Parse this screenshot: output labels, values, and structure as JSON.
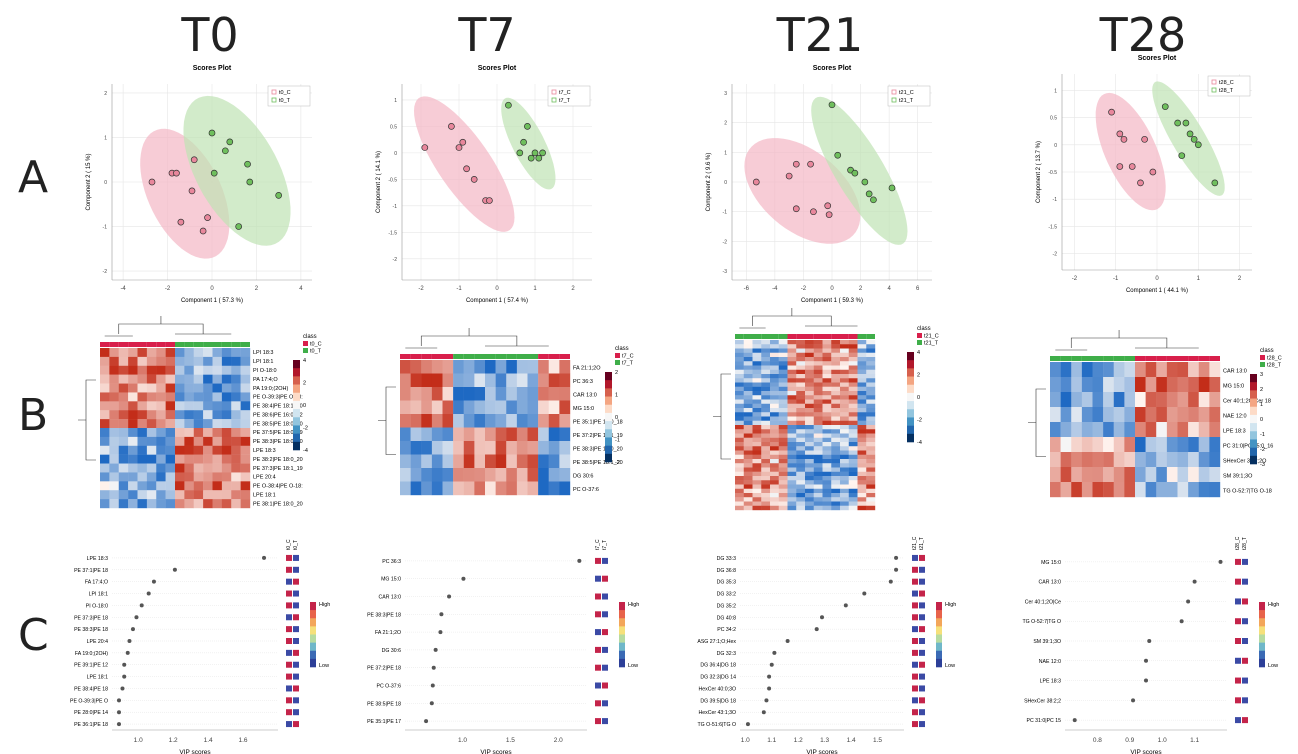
{
  "columns": [
    "T0",
    "T7",
    "T21",
    "T28"
  ],
  "rows": [
    "A",
    "B",
    "C"
  ],
  "chart_data": [
    {
      "type": "scatter",
      "panel": "T0-A",
      "title": "Scores Plot",
      "xlabel": "Component 1 ( 57.3 %)",
      "ylabel": "Component 2 ( 15 %)",
      "xlim": [
        -4.5,
        4.5
      ],
      "ylim": [
        -2.2,
        2.2
      ],
      "xticks": [
        -4,
        -2,
        0,
        2,
        4
      ],
      "yticks": [
        -2,
        -1,
        0,
        1,
        2
      ],
      "legend": [
        "t0_C",
        "t0_T"
      ],
      "series": [
        {
          "name": "t0_C",
          "color": "#e8879c",
          "points": [
            [
              -2.7,
              0.0
            ],
            [
              -1.8,
              0.2
            ],
            [
              -1.6,
              0.2
            ],
            [
              -1.4,
              -0.9
            ],
            [
              -0.8,
              0.5
            ],
            [
              -0.2,
              -0.8
            ],
            [
              -0.4,
              -1.1
            ],
            [
              -0.9,
              -0.2
            ]
          ]
        },
        {
          "name": "t0_T",
          "color": "#6fbf5d",
          "points": [
            [
              0.0,
              1.1
            ],
            [
              0.8,
              0.9
            ],
            [
              0.6,
              0.7
            ],
            [
              1.6,
              0.4
            ],
            [
              1.7,
              0.0
            ],
            [
              3.0,
              -0.3
            ],
            [
              1.2,
              -1.0
            ],
            [
              0.1,
              0.2
            ]
          ]
        }
      ]
    },
    {
      "type": "scatter",
      "panel": "T7-A",
      "title": "Scores Plot",
      "xlabel": "Component 1 ( 57.4 %)",
      "ylabel": "Component 2 ( 14.1 %)",
      "xlim": [
        -2.5,
        2.5
      ],
      "ylim": [
        -2.4,
        1.3
      ],
      "xticks": [
        -2,
        -1,
        0,
        1,
        2
      ],
      "yticks": [
        -2,
        -1.5,
        -1,
        -0.5,
        0,
        0.5,
        1
      ],
      "legend": [
        "t7_C",
        "t7_T"
      ],
      "series": [
        {
          "name": "t7_C",
          "color": "#e8879c",
          "points": [
            [
              -1.9,
              0.1
            ],
            [
              -1.2,
              0.5
            ],
            [
              -1.0,
              0.1
            ],
            [
              -0.9,
              0.2
            ],
            [
              -0.8,
              -0.3
            ],
            [
              -0.6,
              -0.5
            ],
            [
              -0.3,
              -0.9
            ],
            [
              -0.2,
              -0.9
            ]
          ]
        },
        {
          "name": "t7_T",
          "color": "#6fbf5d",
          "points": [
            [
              0.3,
              0.9
            ],
            [
              0.7,
              0.2
            ],
            [
              0.8,
              0.5
            ],
            [
              0.9,
              -0.1
            ],
            [
              1.0,
              0.0
            ],
            [
              1.2,
              0.0
            ],
            [
              1.1,
              -0.1
            ],
            [
              0.6,
              0.0
            ]
          ]
        }
      ]
    },
    {
      "type": "scatter",
      "panel": "T21-A",
      "title": "Scores Plot",
      "xlabel": "Component 1 ( 59.3 %)",
      "ylabel": "Component 2 ( 9.6 %)",
      "xlim": [
        -7,
        7
      ],
      "ylim": [
        -3.3,
        3.3
      ],
      "xticks": [
        -6,
        -4,
        -2,
        0,
        2,
        4,
        6
      ],
      "yticks": [
        -3,
        -2,
        -1,
        0,
        1,
        2,
        3
      ],
      "legend": [
        "t21_C",
        "t21_T"
      ],
      "series": [
        {
          "name": "t21_C",
          "color": "#e8879c",
          "points": [
            [
              -5.3,
              0.0
            ],
            [
              -3.0,
              0.2
            ],
            [
              -2.5,
              0.6
            ],
            [
              -2.5,
              -0.9
            ],
            [
              -1.5,
              0.6
            ],
            [
              -1.3,
              -1.0
            ],
            [
              -0.3,
              -0.8
            ],
            [
              -0.2,
              -1.1
            ]
          ]
        },
        {
          "name": "t21_T",
          "color": "#6fbf5d",
          "points": [
            [
              0.0,
              2.6
            ],
            [
              0.4,
              0.9
            ],
            [
              1.3,
              0.4
            ],
            [
              1.6,
              0.3
            ],
            [
              2.3,
              0.0
            ],
            [
              2.6,
              -0.4
            ],
            [
              2.9,
              -0.6
            ],
            [
              4.2,
              -0.2
            ]
          ]
        }
      ]
    },
    {
      "type": "scatter",
      "panel": "T28-A",
      "title": "Scores Plot",
      "xlabel": "Component 1 ( 44.1 %)",
      "ylabel": "Component 2 ( 13.7 %)",
      "xlim": [
        -2.3,
        2.3
      ],
      "ylim": [
        -2.3,
        1.3
      ],
      "xticks": [
        -2,
        -1,
        0,
        1,
        2
      ],
      "yticks": [
        -2,
        -1.5,
        -1,
        -0.5,
        0,
        0.5,
        1
      ],
      "legend": [
        "t28_C",
        "t28_T"
      ],
      "series": [
        {
          "name": "t28_C",
          "color": "#e8879c",
          "points": [
            [
              -1.1,
              0.6
            ],
            [
              -0.9,
              0.2
            ],
            [
              -0.8,
              0.1
            ],
            [
              -0.6,
              -0.4
            ],
            [
              -0.3,
              0.1
            ],
            [
              -0.9,
              -0.4
            ],
            [
              -0.4,
              -0.7
            ],
            [
              -0.1,
              -0.5
            ]
          ]
        },
        {
          "name": "t28_T",
          "color": "#6fbf5d",
          "points": [
            [
              0.2,
              0.7
            ],
            [
              0.5,
              0.4
            ],
            [
              0.7,
              0.4
            ],
            [
              0.8,
              0.2
            ],
            [
              0.9,
              0.1
            ],
            [
              1.0,
              0.0
            ],
            [
              0.6,
              -0.2
            ],
            [
              1.4,
              -0.7
            ]
          ]
        }
      ]
    },
    {
      "type": "heatmap",
      "panel": "T0-B",
      "legend": [
        "t0_C",
        "t0_T"
      ],
      "scale": [
        -4,
        4
      ],
      "colorbar_ticks": [
        "4",
        "2",
        "0",
        "-2",
        "-4"
      ],
      "rows": [
        "LPI 18:3",
        "LPI 18:1",
        "PI O-18:0",
        "PA 17:4;O",
        "PA 19:0;(2OH)",
        "PE O-39:3|PE O-18:",
        "PE 38:4|PE 18:1_20",
        "PE 38:6|PE 16:0_22",
        "PE 38:5|PE 18:0_20",
        "PE 37:5|PE 18:0_19",
        "PE 38:3|PE 18:0_20",
        "LPE 18:3",
        "PE 38:2|PE 18:0_20",
        "PE 37:3|PE 18:1_19",
        "LPE 20:4",
        "PE O-38:4|PE O-18:",
        "LPE 18:1",
        "PE 38:1|PE 18:0_20"
      ]
    },
    {
      "type": "heatmap",
      "panel": "T7-B",
      "legend": [
        "t7_C",
        "t7_T"
      ],
      "scale": [
        -2,
        2
      ],
      "colorbar_ticks": [
        "2",
        "1",
        "0",
        "-1",
        "-2"
      ],
      "rows": [
        "FA 21:1;2O",
        "PC 36:3",
        "CAR 13:0",
        "MG 15:0",
        "PE 35:1|PE 17:0_18",
        "PE 37:2|PE 18:1_19",
        "PE 38:3|PE 18:0_20",
        "PE 38:5|PE 18:1_20",
        "DG 30:6",
        "PC O-37:6"
      ]
    },
    {
      "type": "heatmap",
      "panel": "T21-B",
      "legend": [
        "t21_C",
        "t21_T"
      ],
      "scale": [
        -4,
        4
      ],
      "colorbar_ticks": [
        "4",
        "2",
        "0",
        "-2",
        "-4"
      ],
      "rows": []
    },
    {
      "type": "heatmap",
      "panel": "T28-B",
      "legend": [
        "t28_C",
        "t28_T"
      ],
      "scale": [
        -3,
        3
      ],
      "colorbar_ticks": [
        "3",
        "2",
        "1",
        "0",
        "-1",
        "-2",
        "-3"
      ],
      "rows": [
        "CAR 13:0",
        "MG 15:0",
        "Cer 40:1;2O|Cer 18",
        "NAE 12:0",
        "LPE 18:3",
        "PC 31:0|PC 15:0_16",
        "SHexCer 38:2;2O",
        "SM 39:1;3O",
        "TG O-52:7|TG O-18"
      ]
    },
    {
      "type": "scatter",
      "subtype": "vip",
      "panel": "T0-C",
      "xlabel": "VIP scores",
      "xlim": [
        0.85,
        1.8
      ],
      "xticks": [
        1.0,
        1.2,
        1.4,
        1.6
      ],
      "legend": [
        "t0_C",
        "t0_T"
      ],
      "colorbar": [
        "High",
        "Low"
      ],
      "labels": [
        "LPE 18:3",
        "PE 37:1|PE 18",
        "FA 17:4;O",
        "LPI 18:1",
        "PI O-18:0",
        "PE 37:3|PE 18",
        "PE 38:3|PE 18",
        "LPE 20:4",
        "FA 19:0;(2OH)",
        "PE 39:1|PE 12",
        "LPE 18:1",
        "PE 38:4|PE 18",
        "PE O-39:3|PE O",
        "PE 28:0|PE 14",
        "PE 36:1|PE 18"
      ],
      "values": [
        1.72,
        1.21,
        1.09,
        1.06,
        1.02,
        0.99,
        0.97,
        0.95,
        0.94,
        0.92,
        0.92,
        0.91,
        0.89,
        0.89,
        0.89
      ]
    },
    {
      "type": "scatter",
      "subtype": "vip",
      "panel": "T7-C",
      "xlabel": "VIP scores",
      "xlim": [
        0.4,
        2.3
      ],
      "xticks": [
        1.0,
        1.5,
        2.0
      ],
      "legend": [
        "t7_C",
        "t7_T"
      ],
      "colorbar": [
        "High",
        "Low"
      ],
      "labels": [
        "PC 36:3",
        "MG 15:0",
        "CAR 13:0",
        "PE 38:3|PE 18",
        "FA 21:1;2O",
        "DG 30:6",
        "PE 37:2|PE 18",
        "PC O-37:6",
        "PE 38:5|PE 18",
        "PE 35:1|PE 17"
      ],
      "values": [
        2.22,
        1.01,
        0.86,
        0.78,
        0.77,
        0.72,
        0.7,
        0.69,
        0.68,
        0.62
      ]
    },
    {
      "type": "scatter",
      "subtype": "vip",
      "panel": "T21-C",
      "xlabel": "VIP scores",
      "xlim": [
        0.98,
        1.6
      ],
      "xticks": [
        1.0,
        1.1,
        1.2,
        1.3,
        1.4,
        1.5
      ],
      "legend": [
        "t21_C",
        "t21_T"
      ],
      "colorbar": [
        "High",
        "Low"
      ],
      "labels": [
        "DG 33:3",
        "DG 36:8",
        "DG 35:3",
        "DG 33:2",
        "DG 35:2",
        "DG 40:8",
        "PC 34:2",
        "ASG 27:1;O;Hex",
        "DG 32:3",
        "DG 36:4|DG 18",
        "DG 32:3|DG 14",
        "HexCer 40:0;3O",
        "DG 39:5|DG 18",
        "HexCer 43:1;3O",
        "TG O-51:6|TG O"
      ],
      "values": [
        1.57,
        1.57,
        1.55,
        1.45,
        1.38,
        1.29,
        1.27,
        1.16,
        1.11,
        1.1,
        1.09,
        1.09,
        1.08,
        1.07,
        1.01
      ]
    },
    {
      "type": "scatter",
      "subtype": "vip",
      "panel": "T28-C",
      "xlabel": "VIP scores",
      "xlim": [
        0.7,
        1.2
      ],
      "xticks": [
        0.8,
        0.9,
        1.0,
        1.1
      ],
      "legend": [
        "t28_C",
        "t28_T"
      ],
      "colorbar": [
        "High",
        "Low"
      ],
      "labels": [
        "MG 15:0",
        "CAR 13:0",
        "Cer 40:1;2O|Ce",
        "TG O-52:7|TG O",
        "SM 39:1;3O",
        "NAE 12:0",
        "LPE 18:3",
        "SHexCer 38:2;2",
        "PC 31:0|PC 15"
      ],
      "values": [
        1.18,
        1.1,
        1.08,
        1.06,
        0.96,
        0.95,
        0.95,
        0.91,
        0.73
      ]
    }
  ]
}
